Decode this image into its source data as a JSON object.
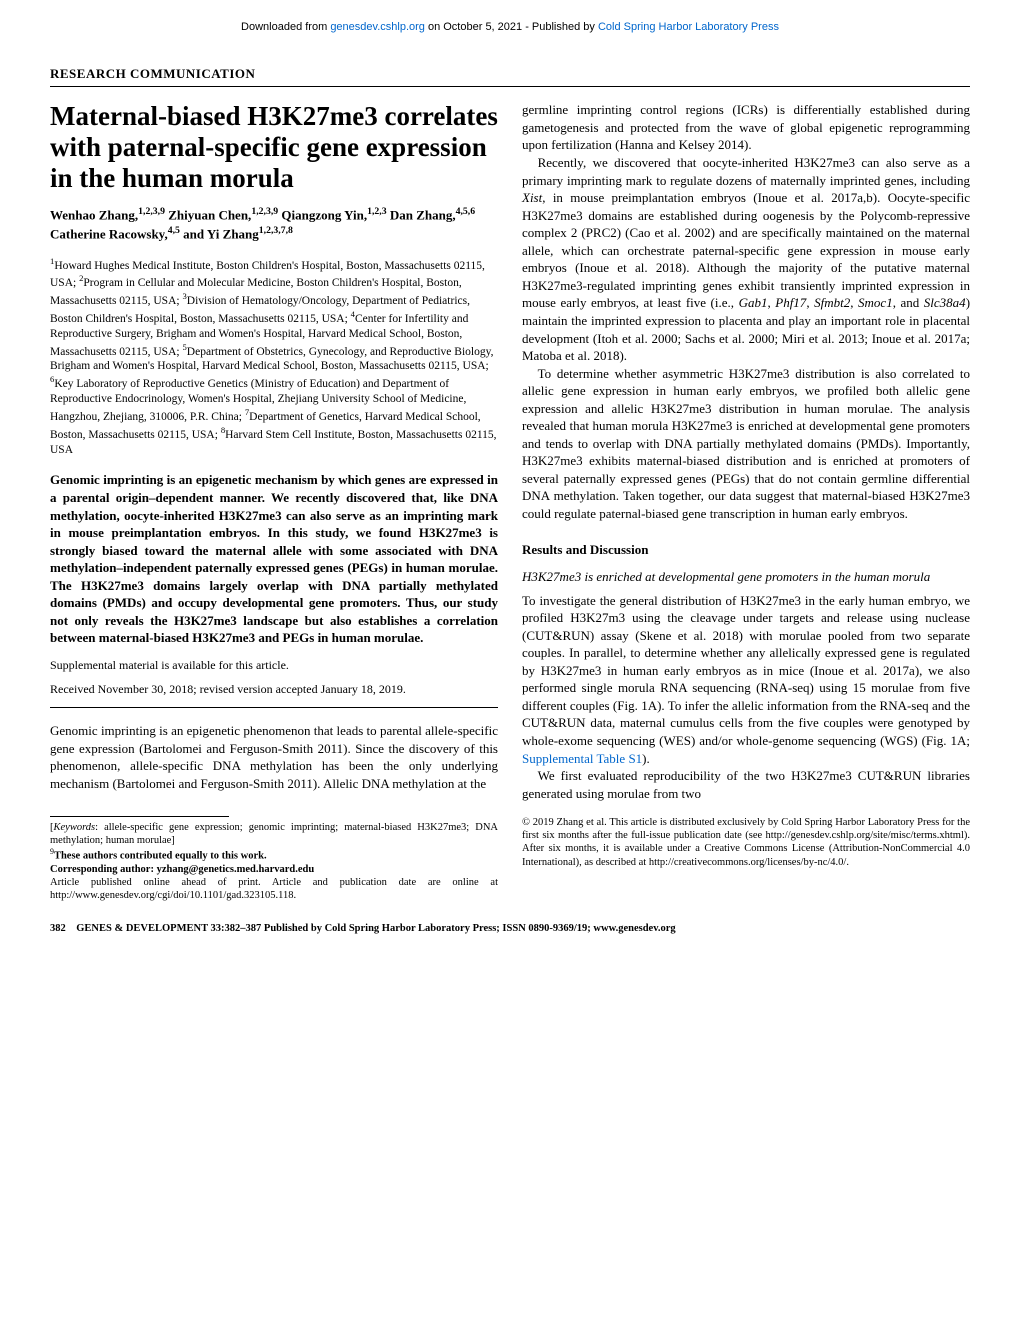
{
  "header": {
    "prefix": "Downloaded from ",
    "link1": "genesdev.cshlp.org",
    "middle": " on October 5, 2021 - Published by ",
    "link2": "Cold Spring Harbor Laboratory Press"
  },
  "section_header": "RESEARCH COMMUNICATION",
  "title": "Maternal-biased H3K27me3 correlates with paternal-specific gene expression in the human morula",
  "authors_html": "Wenhao Zhang,<sup>1,2,3,9</sup> Zhiyuan Chen,<sup>1,2,3,9</sup> Qiangzong Yin,<sup>1,2,3</sup> Dan Zhang,<sup>4,5,6</sup> Catherine Racowsky,<sup>4,5</sup> and Yi Zhang<sup>1,2,3,7,8</sup>",
  "affiliations_html": "<sup>1</sup>Howard Hughes Medical Institute, Boston Children's Hospital, Boston, Massachusetts 02115, USA; <sup>2</sup>Program in Cellular and Molecular Medicine, Boston Children's Hospital, Boston, Massachusetts 02115, USA; <sup>3</sup>Division of Hematology/Oncology, Department of Pediatrics, Boston Children's Hospital, Boston, Massachusetts 02115, USA; <sup>4</sup>Center for Infertility and Reproductive Surgery, Brigham and Women's Hospital, Harvard Medical School, Boston, Massachusetts 02115, USA; <sup>5</sup>Department of Obstetrics, Gynecology, and Reproductive Biology, Brigham and Women's Hospital, Harvard Medical School, Boston, Massachusetts 02115, USA; <sup>6</sup>Key Laboratory of Reproductive Genetics (Ministry of Education) and Department of Reproductive Endocrinology, Women's Hospital, Zhejiang University School of Medicine, Hangzhou, Zhejiang, 310006, P.R. China; <sup>7</sup>Department of Genetics, Harvard Medical School, Boston, Massachusetts 02115, USA; <sup>8</sup>Harvard Stem Cell Institute, Boston, Massachusetts 02115, USA",
  "abstract": "Genomic imprinting is an epigenetic mechanism by which genes are expressed in a parental origin–dependent manner. We recently discovered that, like DNA methylation, oocyte-inherited H3K27me3 can also serve as an imprinting mark in mouse preimplantation embryos. In this study, we found H3K27me3 is strongly biased toward the maternal allele with some associated with DNA methylation–independent paternally expressed genes (PEGs) in human morulae. The H3K27me3 domains largely overlap with DNA partially methylated domains (PMDs) and occupy developmental gene promoters. Thus, our study not only reveals the H3K27me3 landscape but also establishes a correlation between maternal-biased H3K27me3 and PEGs in human morulae.",
  "supplemental": "Supplemental material is available for this article.",
  "received": "Received November 30, 2018; revised version accepted January 18, 2019.",
  "left_body_p1": "Genomic imprinting is an epigenetic phenomenon that leads to parental allele-specific gene expression (Bartolomei and Ferguson-Smith 2011). Since the discovery of this phenomenon, allele-specific DNA methylation has been the only underlying mechanism (Bartolomei and Ferguson-Smith 2011). Allelic DNA methylation at the",
  "right_body_p1": "germline imprinting control regions (ICRs) is differentially established during gametogenesis and protected from the wave of global epigenetic reprogramming upon fertilization (Hanna and Kelsey 2014).",
  "right_body_p2_html": "Recently, we discovered that oocyte-inherited H3K27me3 can also serve as a primary imprinting mark to regulate dozens of maternally imprinted genes, including <span class=\"italic\">Xist</span>, in mouse preimplantation embryos (Inoue et al. 2017a,b). Oocyte-specific H3K27me3 domains are established during oogenesis by the Polycomb-repressive complex 2 (PRC2) (Cao et al. 2002) and are specifically maintained on the maternal allele, which can orchestrate paternal-specific gene expression in mouse early embryos (Inoue et al. 2018). Although the majority of the putative maternal H3K27me3-regulated imprinting genes exhibit transiently imprinted expression in mouse early embryos, at least five (i.e., <span class=\"italic\">Gab1</span>, <span class=\"italic\">Phf17</span>, <span class=\"italic\">Sfmbt2</span>, <span class=\"italic\">Smoc1</span>, and <span class=\"italic\">Slc38a4</span>) maintain the imprinted expression to placenta and play an important role in placental development (Itoh et al. 2000; Sachs et al. 2000; Miri et al. 2013; Inoue et al. 2017a; Matoba et al. 2018).",
  "right_body_p3": "To determine whether asymmetric H3K27me3 distribution is also correlated to allelic gene expression in human early embryos, we profiled both allelic gene expression and allelic H3K27me3 distribution in human morulae. The analysis revealed that human morula H3K27me3 is enriched at developmental gene promoters and tends to overlap with DNA partially methylated domains (PMDs). Importantly, H3K27me3 exhibits maternal-biased distribution and is enriched at promoters of several paternally expressed genes (PEGs) that do not contain germline differential DNA methylation. Taken together, our data suggest that maternal-biased H3K27me3 could regulate paternal-biased gene transcription in human early embryos.",
  "results_heading": "Results and Discussion",
  "subsection1": "H3K27me3 is enriched at developmental gene promoters in the human morula",
  "right_body_p4_html": "To investigate the general distribution of H3K27me3 in the early human embryo, we profiled H3K27m3 using the cleavage under targets and release using nuclease (CUT&RUN) assay (Skene et al. 2018) with morulae pooled from two separate couples. In parallel, to determine whether any allelically expressed gene is regulated by H3K27me3 in human early embryos as in mice (Inoue et al. 2017a), we also performed single morula RNA sequencing (RNA-seq) using 15 morulae from five different couples (Fig. 1A). To infer the allelic information from the RNA-seq and the CUT&RUN data, maternal cumulus cells from the five couples were genotyped by whole-exome sequencing (WES) and/or whole-genome sequencing (WGS) (Fig. 1A; <span class=\"suplink\">Supplemental Table S1</span>).",
  "right_body_p5": "We first evaluated reproducibility of the two H3K27me3 CUT&RUN libraries generated using morulae from two",
  "footer_left_html": "[<span class=\"italic\">Keywords</span>: allele-specific gene expression; genomic imprinting; maternal-biased H3K27me3; DNA methylation; human morulae]<br><sup>9</sup><b>These authors contributed equally to this work.</b><br><b>Corresponding author: yzhang@genetics.med.harvard.edu</b><br>Article published online ahead of print. Article and publication date are online at http://www.genesdev.org/cgi/doi/10.1101/gad.323105.118.",
  "footer_right": "© 2019 Zhang et al.   This article is distributed exclusively by Cold Spring Harbor Laboratory Press for the first six months after the full-issue publication date (see http://genesdev.cshlp.org/site/misc/terms.xhtml). After six months, it is available under a Creative Commons License (Attribution-NonCommercial 4.0 International), as described at http://creativecommons.org/licenses/by-nc/4.0/.",
  "page_footer_html": "382&nbsp;&nbsp;&nbsp;&nbsp;GENES & DEVELOPMENT 33:382–387 Published by Cold Spring Harbor Laboratory Press; ISSN 0890-9369/19; www.genesdev.org"
}
